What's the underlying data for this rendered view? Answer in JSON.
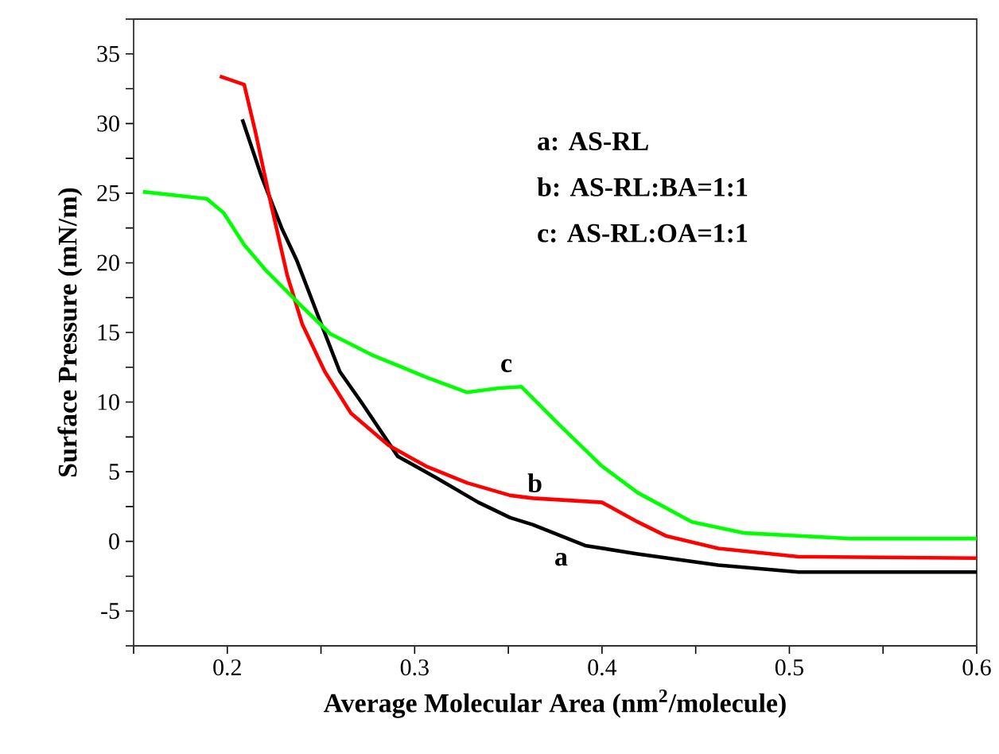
{
  "chart_data": {
    "type": "line",
    "xlabel": "Average Molecular Area (nm$^{2}$/molecule)",
    "ylabel": "Surface Pressure (mN/m)",
    "xlim": [
      0.15,
      0.6
    ],
    "ylim": [
      -7.5,
      37.5
    ],
    "xticks": [
      {
        "value": 0.15,
        "label": null
      },
      0.2,
      {
        "value": 0.25,
        "label": null
      },
      0.3,
      {
        "value": 0.35,
        "label": null
      },
      0.4,
      {
        "value": 0.45,
        "label": null
      },
      0.5,
      {
        "value": 0.55,
        "label": null
      },
      0.6
    ],
    "yticks": [
      {
        "value": -7.5,
        "label": null
      },
      -5,
      {
        "value": -2.5,
        "label": null
      },
      0,
      {
        "value": 2.5,
        "label": null
      },
      5,
      {
        "value": 7.5,
        "label": null
      },
      10,
      {
        "value": 12.5,
        "label": null
      },
      15,
      {
        "value": 17.5,
        "label": null
      },
      20,
      {
        "value": 22.5,
        "label": null
      },
      25,
      {
        "value": 27.5,
        "label": null
      },
      30,
      {
        "value": 32.5,
        "label": null
      },
      35,
      {
        "value": 37.5,
        "label": null
      }
    ],
    "marker": "none",
    "line_style": "solid",
    "series": [
      {
        "color": "#000000",
        "x": [
          0.208,
          0.218,
          0.229,
          0.237,
          0.249,
          0.26,
          0.272,
          0.291,
          0.311,
          0.334,
          0.351,
          0.363,
          0.391,
          0.419,
          0.462,
          0.505,
          0.6
        ],
        "values": [
          30.3,
          26.3,
          22.5,
          20.2,
          16.0,
          12.2,
          9.9,
          6.1,
          4.6,
          2.8,
          1.7,
          1.2,
          -0.3,
          -0.9,
          -1.7,
          -2.2,
          -2.2
        ]
      },
      {
        "color": "#ff0000",
        "x": [
          0.196,
          0.209,
          0.215,
          0.223,
          0.232,
          0.24,
          0.252,
          0.266,
          0.286,
          0.306,
          0.328,
          0.351,
          0.363,
          0.4,
          0.419,
          0.434,
          0.462,
          0.505,
          0.6
        ],
        "values": [
          33.4,
          32.8,
          29.4,
          24.4,
          19.1,
          15.6,
          12.2,
          9.2,
          6.9,
          5.4,
          4.2,
          3.3,
          3.1,
          2.8,
          1.4,
          0.4,
          -0.5,
          -1.1,
          -1.2
        ]
      },
      {
        "color": "#00ff00",
        "x": [
          0.155,
          0.189,
          0.198,
          0.209,
          0.221,
          0.238,
          0.255,
          0.277,
          0.306,
          0.328,
          0.345,
          0.357,
          0.377,
          0.4,
          0.419,
          0.448,
          0.476,
          0.533,
          0.6
        ],
        "values": [
          25.1,
          24.6,
          23.6,
          21.3,
          19.4,
          17.1,
          14.9,
          13.4,
          11.8,
          10.7,
          11.0,
          11.1,
          8.4,
          5.4,
          3.5,
          1.4,
          0.6,
          0.2,
          0.2
        ]
      }
    ],
    "annotations": [
      "a",
      "b",
      "c",
      "a: AS-RL",
      "b: AS-RL:BA=1:1",
      "c: AS-RL:OA=1:1"
    ]
  }
}
